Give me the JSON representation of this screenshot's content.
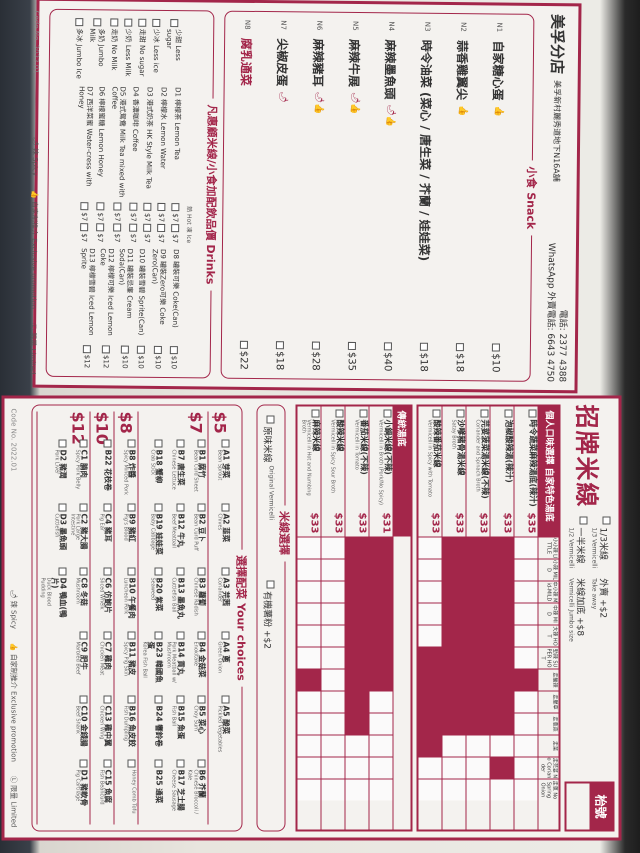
{
  "top_menu": {
    "store": "美孚分店",
    "address": "美孚新村麗秀道地下N16A舖",
    "phone": "電話: 2377 4388",
    "whatsapp": "WhatsApp 外賣電話: 6643 4750",
    "snack_title": "小食 Snack",
    "snacks": [
      {
        "code": "N1",
        "name": "自家糖心蛋",
        "tags": "👍",
        "price": "$10"
      },
      {
        "code": "N2",
        "name": "蒜香雞翼尖",
        "tags": "👍",
        "price": "$18"
      },
      {
        "code": "N3",
        "name": "時令油菜 (菜心 / 唐生菜 / 芥蘭 / 娃娃菜)",
        "tags": "",
        "price": "$18"
      },
      {
        "code": "N4",
        "name": "麻辣墨魚頭",
        "tags": "🌶👍",
        "price": "$40"
      },
      {
        "code": "N5",
        "name": "麻辣牛展",
        "tags": "🌶👍",
        "price": "$35"
      },
      {
        "code": "N6",
        "name": "麻辣豬耳",
        "tags": "🌶👍",
        "price": "$28"
      },
      {
        "code": "N7",
        "name": "尖椒皮蛋",
        "tags": "🌶",
        "price": "$18"
      },
      {
        "code": "N8",
        "name": "腐乳通菜",
        "tags": "",
        "price": "$22",
        "highlight": true
      }
    ],
    "drinks_title": "凡惠顧米線/小食加配飲品價 Drinks",
    "hot_label": "熱 Hot",
    "cold_label": "凍 Ice",
    "options": [
      "少甜 Less sugar",
      "少冰 Less ice",
      "走甜 No sugar",
      "少奶 Less Milk",
      "走奶 No Milk",
      "多奶 Jumbo Milk",
      "多冰 Jumbo Ice"
    ],
    "drinks_a": [
      {
        "name": "D1 檸檬茶 Lemon Tea",
        "hot": "$7",
        "cold": "$7"
      },
      {
        "name": "D2 檸檬水 Lemon Water",
        "hot": "$7",
        "cold": "$7"
      },
      {
        "name": "D3 港式奶茶 HK Style Milk Tea",
        "hot": "$7",
        "cold": "$7"
      },
      {
        "name": "D4 香濃咖啡 Coffee",
        "hot": "$7",
        "cold": "$7"
      },
      {
        "name": "D5 港式鴛鴦 Milk Tea mixed with Coffee",
        "hot": "$7",
        "cold": "$7"
      },
      {
        "name": "D6 檸檬蜜糖 Lemon Honey",
        "hot": "$7",
        "cold": "$7"
      },
      {
        "name": "D7 西洋菜蜜 Water-cress with Honey",
        "hot": "$7",
        "cold": "$7"
      }
    ],
    "drinks_b": [
      {
        "name": "D8 罐裝可樂 Coke(Can)",
        "price": "$10"
      },
      {
        "name": "D9 罐裝Zero可樂 Coke Zero(Can)",
        "price": "$10"
      },
      {
        "name": "D10 罐裝雪碧 Sprite(Can)",
        "price": "$10"
      },
      {
        "name": "D11 罐裝忌廉 Cream Soda(Can)",
        "price": "$10"
      },
      {
        "name": "D12 檸檬可樂 Iced Lemon Coke",
        "price": "$12"
      },
      {
        "name": "D13 檸檬雪碧 Iced Lemon Sprite",
        "price": "$12"
      }
    ],
    "footer": {
      "code": "Code No. 2022.01",
      "spicy": "🌶 辣 Spicy",
      "promo": "👍 自家制推介 Exclusive promotion",
      "limited": "Ⓛ 限量 Limited"
    }
  },
  "bottom_menu": {
    "brand": "招牌米線",
    "options": [
      {
        "label": "1/3米線",
        "en": "1/3 Vermicelli"
      },
      {
        "label": "外賣 +$2",
        "en": "Take away"
      },
      {
        "label": "一半米線",
        "en": "1/2 Vermicelli"
      },
      {
        "label": "米線加底 +$8",
        "en": "Vermicelli Jumbo size"
      }
    ],
    "table_no_label": "枱號",
    "columns": [
      "小小辣 LITTLE",
      "小辣 MILD",
      "中小辣 Mid-MILD",
      "中辣 MID",
      "大辣 HOT",
      "勁辣 SUPER HOT",
      "走酸辣",
      "走腥草",
      "走蔥蒜",
      "走菜",
      "走芫荽 No Coriander",
      "走蔥 No Spring Onion"
    ],
    "signature_title": "個人口味選擇  自家特色湯底",
    "signature": [
      {
        "name": "時令蔬菜麻辣湯底(辣汁)",
        "en": "",
        "price": "$35",
        "blocked": [
          6
        ]
      },
      {
        "name": "泡椒酸辣湯(辣汁)",
        "en": "",
        "price": "$33",
        "blocked": [
          0,
          1,
          2,
          3,
          4,
          5,
          6,
          7,
          8,
          10
        ]
      },
      {
        "name": "芫荽菠菜湯米線(不辣)",
        "en": "Coriander and Spinach Broth",
        "price": "$33",
        "blocked": [
          0,
          1,
          2,
          3,
          4,
          5,
          6,
          7,
          8
        ]
      },
      {
        "name": "沙嗲豬骨湯米線",
        "en": "Satay Broth",
        "price": "$33",
        "blocked": [
          0,
          1,
          2,
          3,
          4,
          5,
          6,
          7,
          8
        ]
      },
      {
        "name": "酸辣番茄米線",
        "en": "Vermicelli in Spicy with Tomato",
        "price": "$33",
        "blocked": [
          5,
          6,
          7,
          8,
          9
        ]
      }
    ],
    "traditional_title": "傳統湯底",
    "traditional": [
      {
        "name": "小鍋米線(不辣)",
        "en": "Vermicelli in Broth (Pork/No Spicy)",
        "price": "$31",
        "blocked": [
          0,
          1,
          2,
          3,
          4,
          5,
          6
        ]
      },
      {
        "name": "番茄米線(不辣)",
        "en": "Vermicelli in Tomato",
        "price": "$33",
        "blocked": [
          0,
          1,
          2,
          3,
          4,
          5,
          6,
          7,
          8
        ]
      },
      {
        "name": "酸辣米線",
        "en": "Vermicelli in Spicy Sour Broth",
        "price": "$33",
        "blocked": []
      },
      {
        "name": "麻辣米線",
        "en": "Vermicelli in Hot and Numbing Broth",
        "price": "$33",
        "blocked": [
          6
        ]
      }
    ],
    "vermicelli_title": "米線選擇",
    "vermicelli": [
      {
        "label": "原味米線",
        "en": "Original Vermicelli"
      },
      {
        "label": "有機薯粉 +$2",
        "en": ""
      }
    ],
    "choices_title": "選擇配菜 Your choices",
    "tiers": [
      {
        "price": "$5",
        "items": [
          [
            "A1 芽菜",
            "Bean Sprout"
          ],
          [
            "A2 韮菜",
            "Chives"
          ],
          [
            "A3 芫茜",
            "Coriander"
          ],
          [
            "A4 蔥",
            "Green Onion"
          ],
          [
            "A5 酸菜",
            "Pickled Vegetables"
          ]
        ]
      },
      {
        "price": "$7",
        "items": [
          [
            "B1 腐竹",
            "Bean Curd Sheet"
          ],
          [
            "B2 豆卜",
            "Bean Curd Puff"
          ],
          [
            "B3 蘿蔔",
            "Chinese Radish"
          ],
          [
            "B4 金菇菜",
            "Enokitake"
          ],
          [
            "B5 菜心",
            "Choy Sum"
          ],
          [
            "B6 芥蘭",
            "Chinese Broccoli / Kale"
          ],
          [
            "B7 唐生菜",
            "Chinese Lettuce"
          ],
          [
            "B12 牛丸",
            "Beef Meatball"
          ],
          [
            "B13 墨魚丸",
            "Cuttlefish Ball"
          ],
          [
            "B14 貢丸",
            "Pork Meatball w/ Mushroom"
          ],
          [
            "B15 魚蛋",
            "Fish Ball"
          ],
          [
            "B17 芝士腸",
            "Cheese Sausage"
          ],
          [
            "B18 蟹柳",
            "Crab Stick"
          ],
          [
            "B19 娃娃菜",
            "Baby Cabbage"
          ],
          [
            "B20 紫菜",
            "Seaweed"
          ],
          [
            "B23 韓國魚蛋",
            "Korea Fish Ball"
          ],
          [
            "B24 響鈴卷",
            ""
          ],
          [
            "B25 通菜",
            ""
          ]
        ]
      },
      {
        "price": "$8",
        "items": [
          [
            "B8 炸醬",
            "Spicy Minced Pork"
          ],
          [
            "B9 豬紅",
            "Pig's Blood"
          ],
          [
            "B10 午餐肉",
            "Luncheon Pork"
          ],
          [
            "B11 豬皮",
            "Spicy Pig Skin"
          ],
          [
            "B16 魚皮餃",
            "Fish Dumpling"
          ],
          [
            "",
            "Honey Comb Tofu"
          ]
        ]
      },
      {
        "price": "$10",
        "items": [
          [
            "B22 花枝卷",
            ""
          ],
          [
            "C4 豬耳",
            "Pig Ear"
          ],
          [
            "C6 仿鮑片",
            "Sliced Whelk"
          ],
          [
            "C7 雞肉",
            "Chicken Meat"
          ],
          [
            "C13 雞中翼",
            "Chicken Wing"
          ],
          [
            "C15 魚腐",
            "Fish Beancurd"
          ]
        ]
      },
      {
        "price": "$12",
        "items": [
          [
            "C1 腩肉",
            "Spicy Pork Belly"
          ],
          [
            "C2 豬大腸",
            "Pork Large Intestine"
          ],
          [
            "C8 冬菇",
            "Mushroom"
          ],
          [
            "C9 肥牛",
            "Marbled Beef"
          ],
          [
            "C10 金錢腸",
            "Beef Shank"
          ],
          [
            "D1 豬軟骨",
            "Pig Cartilage"
          ],
          [
            "D2 豬潤",
            "Pork Liver"
          ],
          [
            "D3 墨魚頭",
            "Cuttlefish"
          ],
          [
            "D4 鴨血(鴨片)",
            "Duck Blood Pudding"
          ]
        ]
      }
    ],
    "footer": {
      "code": "Code No. 2022.01",
      "spicy": "🌶 辣 Spicy",
      "promo": "👍 自家制推介 Exclusive promotion",
      "limited": "Ⓛ 限量 Limited"
    }
  }
}
